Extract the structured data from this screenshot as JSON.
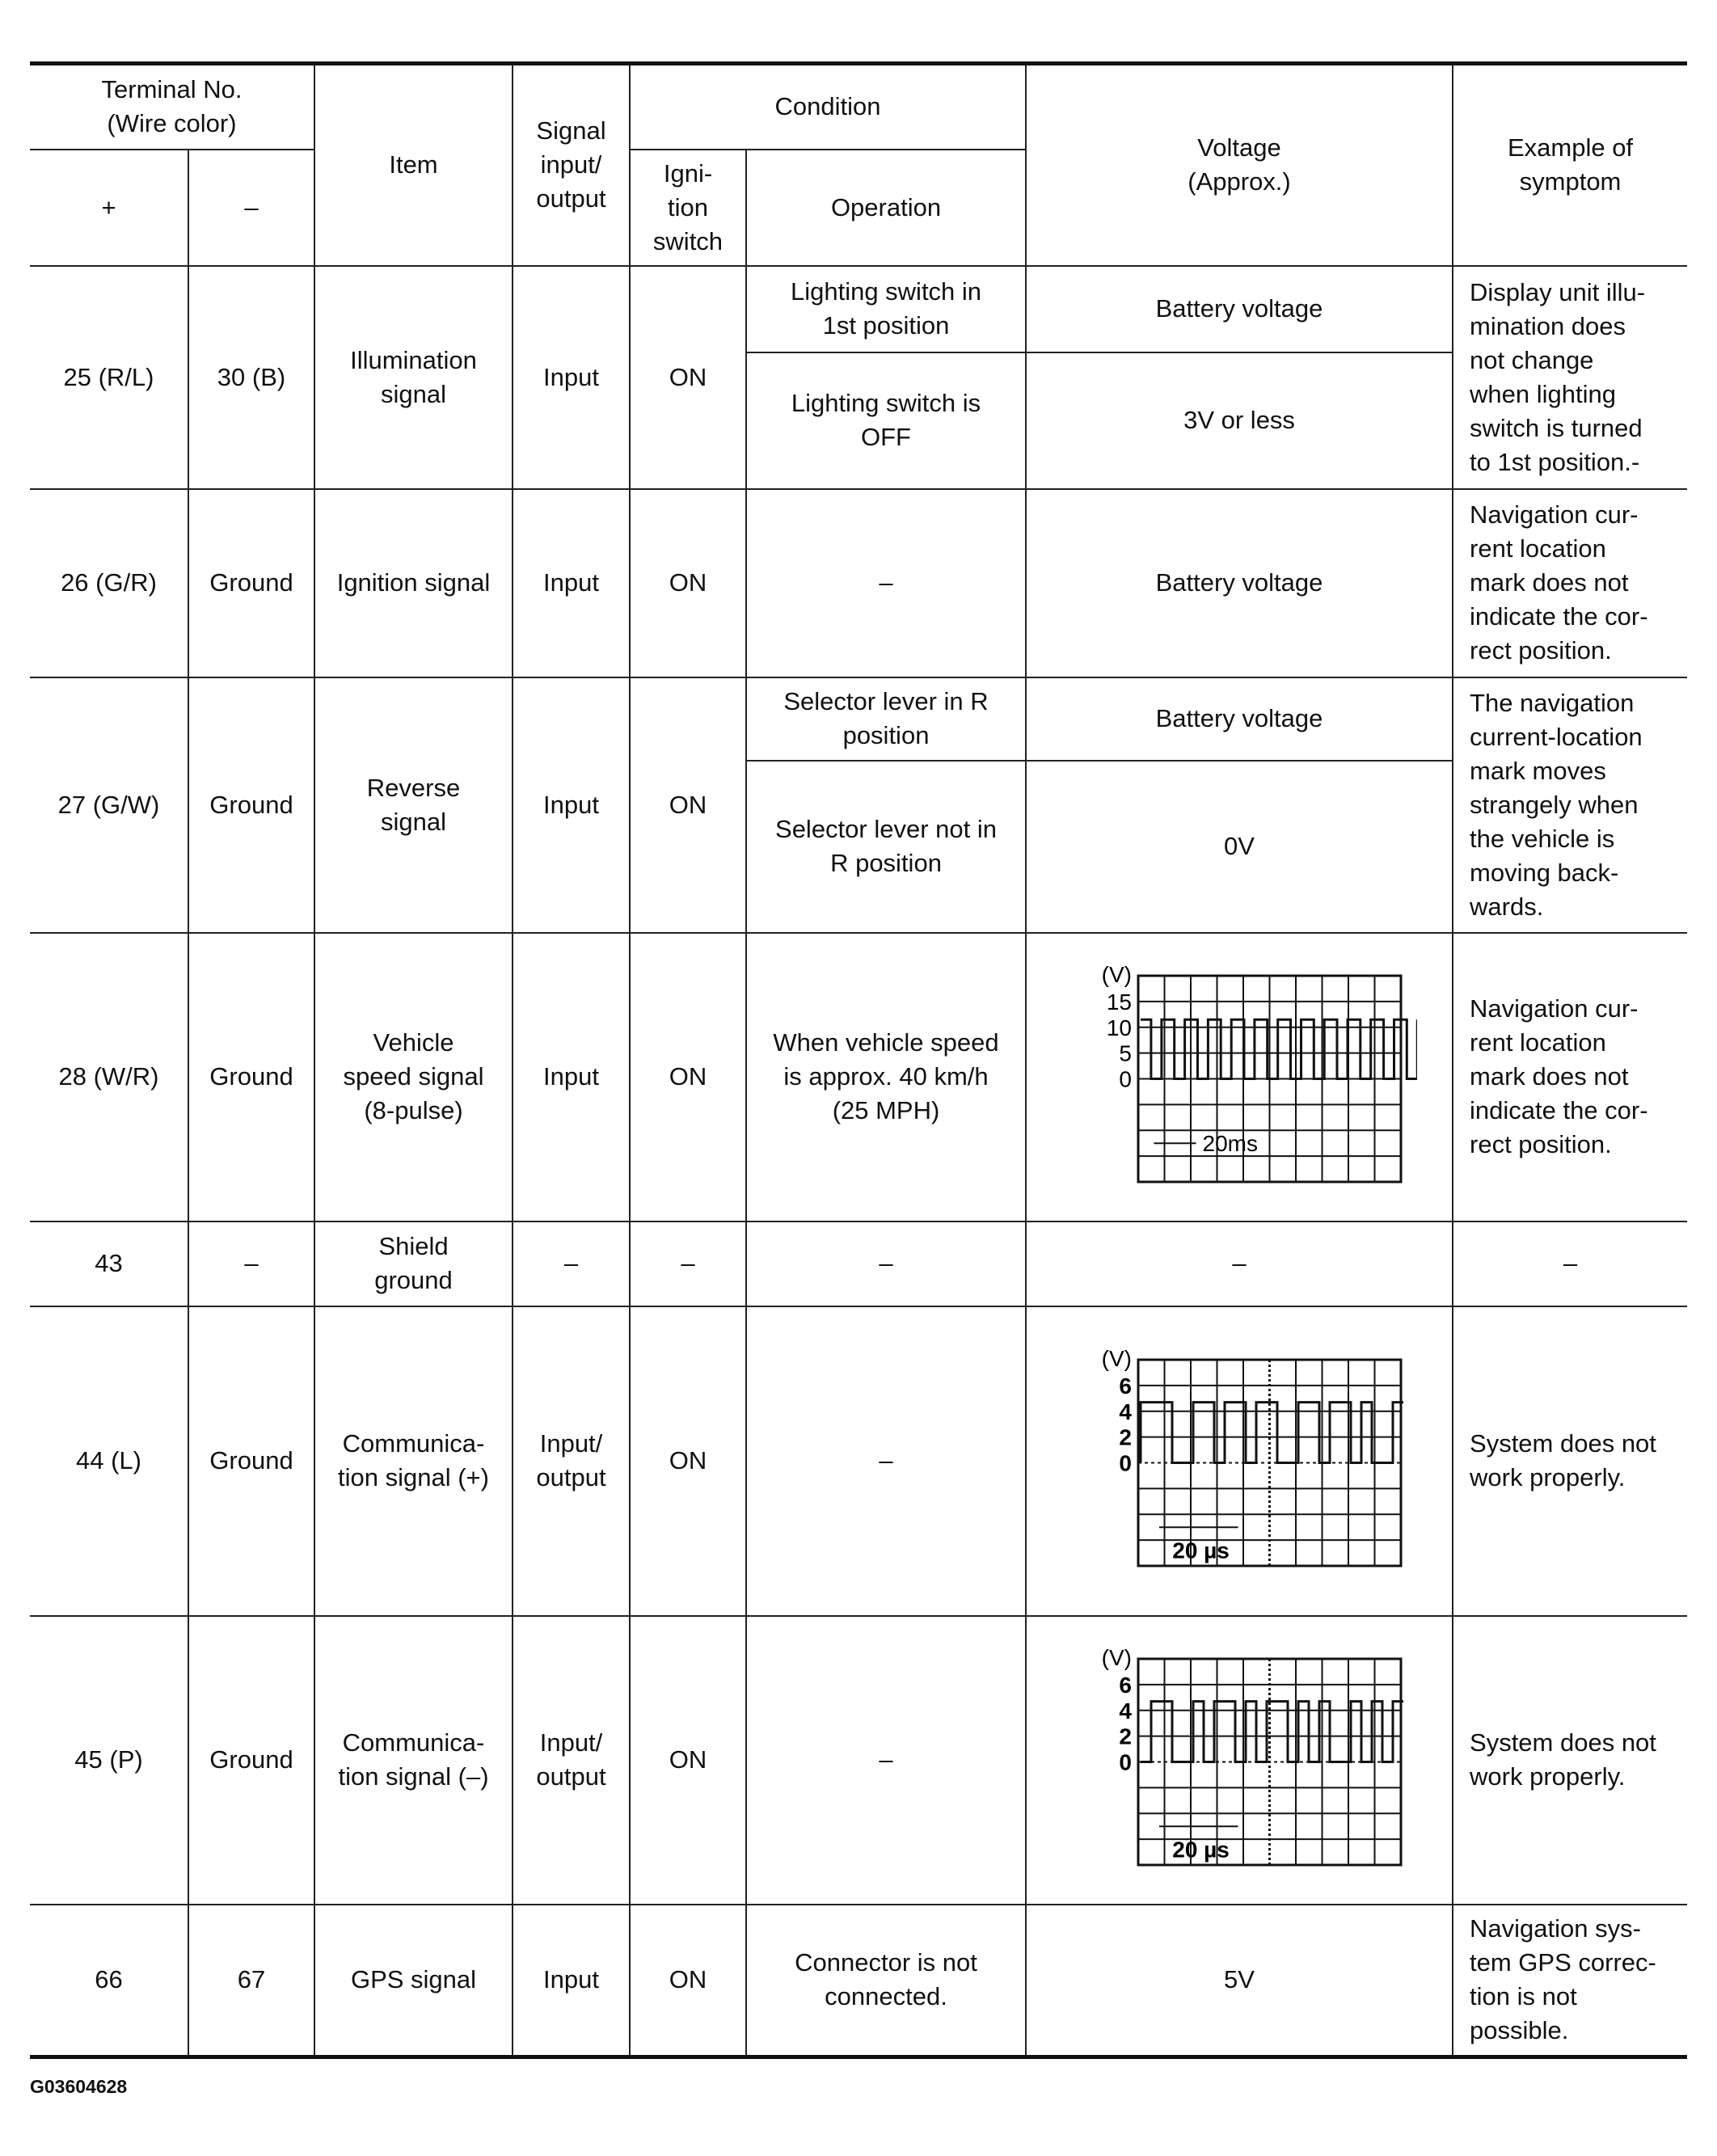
{
  "header": {
    "terminal": "Terminal No.\n(Wire color)",
    "plus": "+",
    "minus": "–",
    "item": "Item",
    "signal": "Signal\ninput/\noutput",
    "condition": "Condition",
    "ignition": "Igni-\ntion\nswitch",
    "operation": "Operation",
    "voltage": "Voltage\n(Approx.)",
    "symptom": "Example of\nsymptom"
  },
  "rows": [
    {
      "plus": "25 (R/L)",
      "minus": "30 (B)",
      "item": "Illumination\nsignal",
      "signal": "Input",
      "ign": "ON",
      "op1": "Lighting switch in\n1st position",
      "v1": "Battery voltage",
      "op2": "Lighting switch is\nOFF",
      "v2": "3V or less",
      "symptom": "Display unit illu-\nmination does\nnot change\nwhen lighting\nswitch is turned\nto 1st position.-"
    },
    {
      "plus": "26 (G/R)",
      "minus": "Ground",
      "item": "Ignition signal",
      "signal": "Input",
      "ign": "ON",
      "op1": "–",
      "v1": "Battery voltage",
      "symptom": "Navigation cur-\nrent location\nmark does not\nindicate the cor-\nrect position."
    },
    {
      "plus": "27 (G/W)",
      "minus": "Ground",
      "item": "Reverse\nsignal",
      "signal": "Input",
      "ign": "ON",
      "op1": "Selector lever in R\nposition",
      "v1": "Battery voltage",
      "op2": "Selector lever not in\nR position",
      "v2": "0V",
      "symptom": "The navigation\ncurrent-location\nmark moves\nstrangely when\nthe vehicle is\nmoving back-\nwards."
    },
    {
      "plus": "28 (W/R)",
      "minus": "Ground",
      "item": "Vehicle\nspeed signal\n(8-pulse)",
      "signal": "Input",
      "ign": "ON",
      "op1": "When vehicle speed\nis approx. 40 km/h\n(25 MPH)",
      "symptom": "Navigation cur-\nrent location\nmark does not\nindicate the cor-\nrect position.",
      "scope": {
        "unit": "(V)",
        "ticks": [
          "15",
          "10",
          "5",
          "0"
        ],
        "time": "20ms"
      }
    },
    {
      "plus": "43",
      "minus": "–",
      "item": "Shield\nground",
      "signal": "–",
      "ign": "–",
      "op1": "–",
      "v1": "–",
      "symptom": "–"
    },
    {
      "plus": "44 (L)",
      "minus": "Ground",
      "item": "Communica-\ntion signal (+)",
      "signal": "Input/\noutput",
      "ign": "ON",
      "op1": "–",
      "symptom": "System does not\nwork properly.",
      "scope": {
        "unit": "(V)",
        "ticks": [
          "6",
          "4",
          "2",
          "0"
        ],
        "time": "20 µs"
      }
    },
    {
      "plus": "45 (P)",
      "minus": "Ground",
      "item": "Communica-\ntion signal (–)",
      "signal": "Input/\noutput",
      "ign": "ON",
      "op1": "–",
      "symptom": "System does not\nwork properly.",
      "scope": {
        "unit": "(V)",
        "ticks": [
          "6",
          "4",
          "2",
          "0"
        ],
        "time": "20 µs"
      }
    },
    {
      "plus": "66",
      "minus": "67",
      "item": "GPS signal",
      "signal": "Input",
      "ign": "ON",
      "op1": "Connector is not\nconnected.",
      "v1": "5V",
      "symptom": "Navigation sys-\ntem GPS correc-\ntion is not\npossible."
    }
  ],
  "footer": "G03604628"
}
